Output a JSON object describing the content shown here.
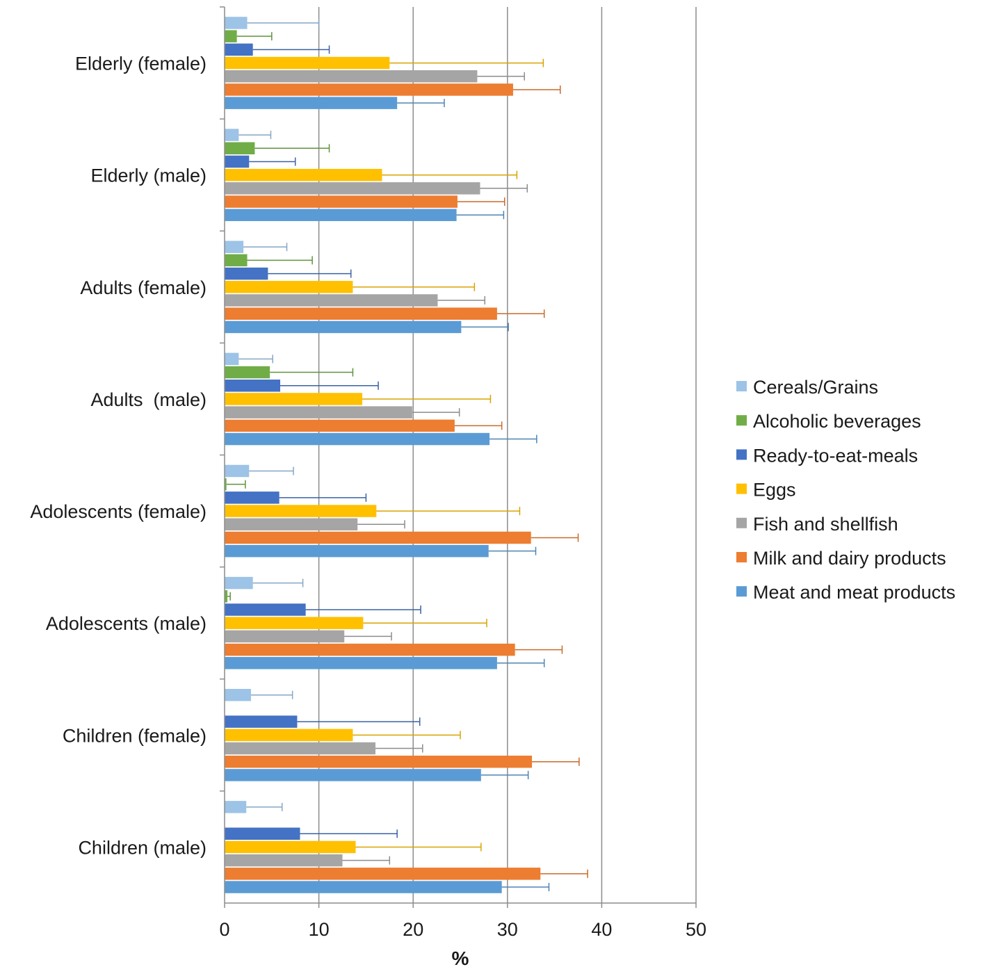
{
  "chart_data": {
    "type": "bar",
    "orientation": "horizontal",
    "xlabel": "%",
    "ylabel": "",
    "xlim": [
      0,
      50
    ],
    "x_ticks": [
      "0",
      "10",
      "20",
      "30",
      "40",
      "50"
    ],
    "grid": "vertical",
    "legend_position": "right",
    "categories": [
      "Elderly (female)",
      "Elderly (male)",
      "Adults (female)",
      "Adults  (male)",
      "Adolescents (female)",
      "Adolescents (male)",
      "Children (female)",
      "Children (male)"
    ],
    "series": [
      {
        "name": "Cereals/Grains",
        "color": "#9dc3e6",
        "values": [
          2.4,
          1.5,
          2.0,
          1.5,
          2.6,
          3.0,
          2.8,
          2.3
        ],
        "errors": [
          7.6,
          3.4,
          4.6,
          3.6,
          4.7,
          5.3,
          4.4,
          3.8
        ]
      },
      {
        "name": "Alcoholic beverages",
        "color": "#70ad47",
        "values": [
          1.3,
          3.2,
          2.4,
          4.8,
          0.2,
          0.3,
          null,
          null
        ],
        "errors": [
          3.7,
          7.9,
          6.9,
          8.8,
          2.0,
          0.3,
          null,
          null
        ]
      },
      {
        "name": "Ready-to-eat-meals",
        "color": "#4472c4",
        "values": [
          3.0,
          2.6,
          4.6,
          5.9,
          5.8,
          8.6,
          7.7,
          8.0
        ],
        "errors": [
          8.1,
          4.9,
          8.8,
          10.4,
          9.2,
          12.2,
          13.0,
          10.3
        ]
      },
      {
        "name": "Eggs",
        "color": "#ffc000",
        "values": [
          17.5,
          16.7,
          13.6,
          14.6,
          16.1,
          14.7,
          13.6,
          13.9
        ],
        "errors": [
          16.3,
          14.3,
          12.9,
          13.6,
          15.2,
          13.1,
          11.4,
          13.3
        ]
      },
      {
        "name": "Fish and shellfish",
        "color": "#a5a5a5",
        "values": [
          26.8,
          27.1,
          22.6,
          19.9,
          14.1,
          12.7,
          16.0,
          12.5
        ],
        "errors": [
          5.0,
          5.0,
          5.0,
          5.0,
          5.0,
          5.0,
          5.0,
          5.0
        ]
      },
      {
        "name": "Milk and dairy products",
        "color": "#ed7d31",
        "values": [
          30.6,
          24.7,
          28.9,
          24.4,
          32.5,
          30.8,
          32.6,
          33.5
        ],
        "errors": [
          5.0,
          5.0,
          5.0,
          5.0,
          5.0,
          5.0,
          5.0,
          5.0
        ]
      },
      {
        "name": "Meat and meat products",
        "color": "#5b9bd5",
        "values": [
          18.3,
          24.6,
          25.1,
          28.1,
          28.0,
          28.9,
          27.2,
          29.4
        ],
        "errors": [
          5.0,
          5.0,
          5.0,
          5.0,
          5.0,
          5.0,
          5.0,
          5.0
        ]
      }
    ]
  }
}
